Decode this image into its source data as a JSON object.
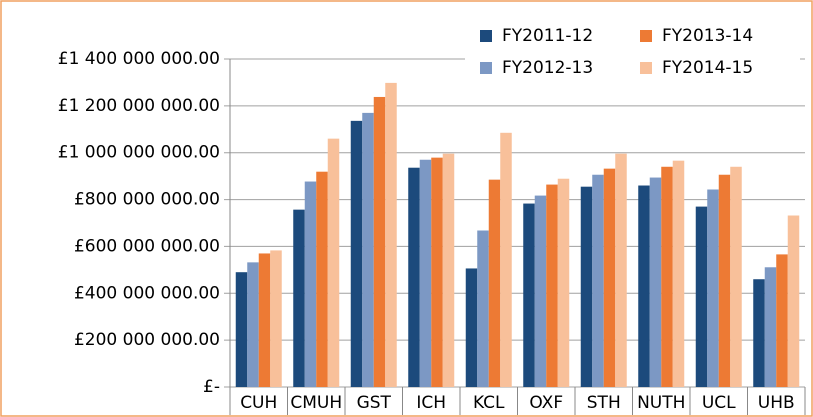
{
  "chart_data": {
    "type": "bar",
    "categories": [
      "CUH",
      "CMUH",
      "GST",
      "ICH",
      "KCL",
      "OXF",
      "STH",
      "NUTH",
      "UCL",
      "UHB"
    ],
    "series": [
      {
        "name": "FY2011-12",
        "color": "#1c4a7c",
        "values": [
          490000000,
          757000000,
          1136000000,
          936000000,
          506000000,
          783000000,
          855000000,
          860000000,
          770000000,
          460000000
        ]
      },
      {
        "name": "FY2012-13",
        "color": "#7c98c4",
        "values": [
          532000000,
          877000000,
          1170000000,
          970000000,
          668000000,
          817000000,
          906000000,
          894000000,
          843000000,
          511000000
        ]
      },
      {
        "name": "FY2013-14",
        "color": "#ed7a34",
        "values": [
          570000000,
          919000000,
          1238000000,
          979000000,
          885000000,
          864000000,
          932000000,
          940000000,
          906000000,
          566000000
        ]
      },
      {
        "name": "FY2014-15",
        "color": "#f8c09a",
        "values": [
          583000000,
          1060000000,
          1298000000,
          996000000,
          1085000000,
          889000000,
          996000000,
          966000000,
          940000000,
          732000000
        ]
      }
    ],
    "ylim": [
      0,
      1400000000
    ],
    "yticks": [
      {
        "value": 0,
        "label": "£-"
      },
      {
        "value": 200000000,
        "label": "£200 000 000.00"
      },
      {
        "value": 400000000,
        "label": "£400 000 000.00"
      },
      {
        "value": 600000000,
        "label": "£600 000 000.00"
      },
      {
        "value": 800000000,
        "label": "£800 000 000.00"
      },
      {
        "value": 1000000000,
        "label": "£1 000 000 000.00"
      },
      {
        "value": 1200000000,
        "label": "£1 200 000 000.00"
      },
      {
        "value": 1400000000,
        "label": "£1 400 000 000.00"
      }
    ],
    "grid": true
  }
}
